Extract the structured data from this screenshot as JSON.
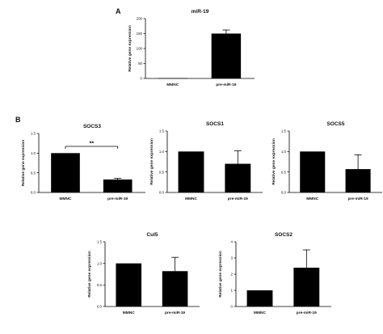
{
  "panels": [
    {
      "label": "A"
    },
    {
      "label": "B"
    }
  ],
  "chart_data": [
    {
      "type": "bar",
      "title": "miR-19",
      "ylabel": "Relative gene expression",
      "xlabel": "",
      "categories": [
        "MMNC",
        "pre-miR-19"
      ],
      "values": [
        1,
        150
      ],
      "errors": [
        0,
        12
      ],
      "ylim": [
        0,
        200
      ],
      "yticks": [
        0,
        50,
        100,
        150,
        200
      ],
      "grid": false,
      "bar_color": "#000000"
    },
    {
      "type": "bar",
      "title": "SOCS3",
      "ylabel": "Relative gene expression",
      "xlabel": "",
      "categories": [
        "MMNC",
        "pre-miR-19"
      ],
      "values": [
        1.0,
        0.33
      ],
      "errors": [
        0,
        0.03
      ],
      "ylim": [
        0,
        1.5
      ],
      "yticks": [
        0.0,
        0.5,
        1.0,
        1.5
      ],
      "grid": false,
      "bar_color": "#000000",
      "annotations": [
        {
          "text": "**",
          "between": [
            0,
            1
          ]
        }
      ]
    },
    {
      "type": "bar",
      "title": "SOCS1",
      "ylabel": "Relative gene expression",
      "xlabel": "",
      "categories": [
        "MMNC",
        "pre-miR-19"
      ],
      "values": [
        1.0,
        0.7
      ],
      "errors": [
        0,
        0.32
      ],
      "ylim": [
        0,
        1.5
      ],
      "yticks": [
        0.0,
        0.5,
        1.0,
        1.5
      ],
      "grid": false,
      "bar_color": "#000000"
    },
    {
      "type": "bar",
      "title": "SOCS5",
      "ylabel": "Relative gene expression",
      "xlabel": "",
      "categories": [
        "MMNC",
        "pre-miR-19"
      ],
      "values": [
        1.0,
        0.57
      ],
      "errors": [
        0,
        0.35
      ],
      "ylim": [
        0,
        1.5
      ],
      "yticks": [
        0.0,
        0.5,
        1.0,
        1.5
      ],
      "grid": false,
      "bar_color": "#000000"
    },
    {
      "type": "bar",
      "title": "Cul5",
      "ylabel": "Relative gene expression",
      "xlabel": "",
      "categories": [
        "MMNC",
        "pre-miR-19"
      ],
      "values": [
        1.0,
        0.82
      ],
      "errors": [
        0,
        0.32
      ],
      "ylim": [
        0,
        1.5
      ],
      "yticks": [
        0.0,
        0.5,
        1.0,
        1.5
      ],
      "grid": false,
      "bar_color": "#000000"
    },
    {
      "type": "bar",
      "title": "SOCS2",
      "ylabel": "Relative gene expression",
      "xlabel": "",
      "categories": [
        "MMNC",
        "pre-miR-19"
      ],
      "values": [
        1.0,
        2.4
      ],
      "errors": [
        0,
        1.1
      ],
      "ylim": [
        0,
        4
      ],
      "yticks": [
        0,
        1,
        2,
        3,
        4
      ],
      "grid": false,
      "bar_color": "#000000"
    }
  ]
}
